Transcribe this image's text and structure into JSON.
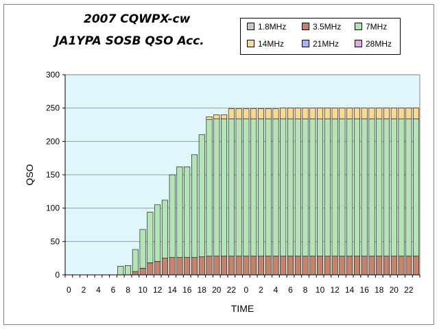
{
  "chart_data": {
    "type": "bar",
    "stacked": true,
    "title": "2007 CQWPX-cw",
    "subtitle": "JA1YPA SOSB   QSO Acc.",
    "xlabel": "TIME",
    "ylabel": "QSO",
    "ylim": [
      0,
      300
    ],
    "yticks": [
      "0",
      "50",
      "100",
      "150",
      "200",
      "250",
      "300"
    ],
    "x": [
      "0",
      "1",
      "2",
      "3",
      "4",
      "5",
      "6",
      "7",
      "8",
      "9",
      "10",
      "11",
      "12",
      "13",
      "14",
      "15",
      "16",
      "17",
      "18",
      "19",
      "20",
      "21",
      "22",
      "23",
      "0",
      "1",
      "2",
      "3",
      "4",
      "5",
      "6",
      "7",
      "8",
      "9",
      "10",
      "11",
      "12",
      "13",
      "14",
      "15",
      "16",
      "17",
      "18",
      "19",
      "20",
      "21",
      "22",
      "23"
    ],
    "xtick_labels": [
      "0",
      "2",
      "4",
      "6",
      "8",
      "10",
      "12",
      "14",
      "16",
      "18",
      "20",
      "22",
      "0",
      "2",
      "4",
      "6",
      "8",
      "10",
      "12",
      "14",
      "16",
      "18",
      "20",
      "22"
    ],
    "legend_position": "top-right",
    "grid": true,
    "series": [
      {
        "name": "1.8MHz",
        "color": "#c8c8c8",
        "values": [
          0,
          0,
          0,
          0,
          0,
          0,
          0,
          0,
          0,
          0,
          0,
          0,
          0,
          0,
          0,
          0,
          0,
          0,
          0,
          0,
          0,
          0,
          0,
          0,
          0,
          0,
          0,
          0,
          0,
          0,
          0,
          0,
          0,
          0,
          0,
          0,
          0,
          0,
          0,
          0,
          0,
          0,
          0,
          0,
          0,
          0,
          0,
          0
        ]
      },
      {
        "name": "3.5MHz",
        "color": "#c6826a",
        "values": [
          0,
          0,
          0,
          0,
          0,
          0,
          0,
          0,
          0,
          5,
          10,
          18,
          20,
          25,
          26,
          26,
          26,
          26,
          27,
          28,
          28,
          28,
          28,
          28,
          28,
          28,
          28,
          28,
          28,
          28,
          28,
          28,
          28,
          28,
          28,
          28,
          28,
          28,
          28,
          28,
          28,
          28,
          28,
          28,
          28,
          28,
          28,
          28
        ]
      },
      {
        "name": "7MHz",
        "color": "#b4e4b4",
        "values": [
          0,
          0,
          0,
          0,
          0,
          0,
          0,
          13,
          14,
          33,
          58,
          76,
          85,
          87,
          124,
          136,
          136,
          154,
          183,
          205,
          206,
          206,
          206,
          206,
          206,
          206,
          206,
          206,
          206,
          206,
          206,
          206,
          206,
          206,
          206,
          206,
          206,
          206,
          206,
          206,
          206,
          206,
          206,
          206,
          206,
          206,
          206,
          206
        ]
      },
      {
        "name": "14MHz",
        "color": "#ffd88c",
        "values": [
          0,
          0,
          0,
          0,
          0,
          0,
          0,
          0,
          0,
          0,
          0,
          0,
          0,
          0,
          0,
          0,
          0,
          0,
          0,
          4,
          6,
          6,
          15,
          15,
          15,
          15,
          15,
          15,
          15,
          16,
          16,
          16,
          16,
          16,
          16,
          16,
          16,
          16,
          16,
          16,
          16,
          16,
          16,
          16,
          16,
          16,
          16,
          16
        ]
      },
      {
        "name": "21MHz",
        "color": "#a8b4ff",
        "values": [
          0,
          0,
          0,
          0,
          0,
          0,
          0,
          0,
          0,
          0,
          0,
          0,
          0,
          0,
          0,
          0,
          0,
          0,
          0,
          0,
          0,
          0,
          0,
          0,
          0,
          0,
          0,
          0,
          0,
          0,
          0,
          0,
          0,
          0,
          0,
          0,
          0,
          0,
          0,
          0,
          0,
          0,
          0,
          0,
          0,
          0,
          0,
          0
        ]
      },
      {
        "name": "28MHz",
        "color": "#e0a8e0",
        "values": [
          0,
          0,
          0,
          0,
          0,
          0,
          0,
          0,
          0,
          0,
          0,
          0,
          0,
          0,
          0,
          0,
          0,
          0,
          0,
          0,
          0,
          0,
          0,
          0,
          0,
          0,
          0,
          0,
          0,
          0,
          0,
          0,
          0,
          0,
          0,
          0,
          0,
          0,
          0,
          0,
          0,
          0,
          0,
          0,
          0,
          0,
          0,
          0
        ]
      }
    ],
    "plot_background": "#dff7fb"
  }
}
